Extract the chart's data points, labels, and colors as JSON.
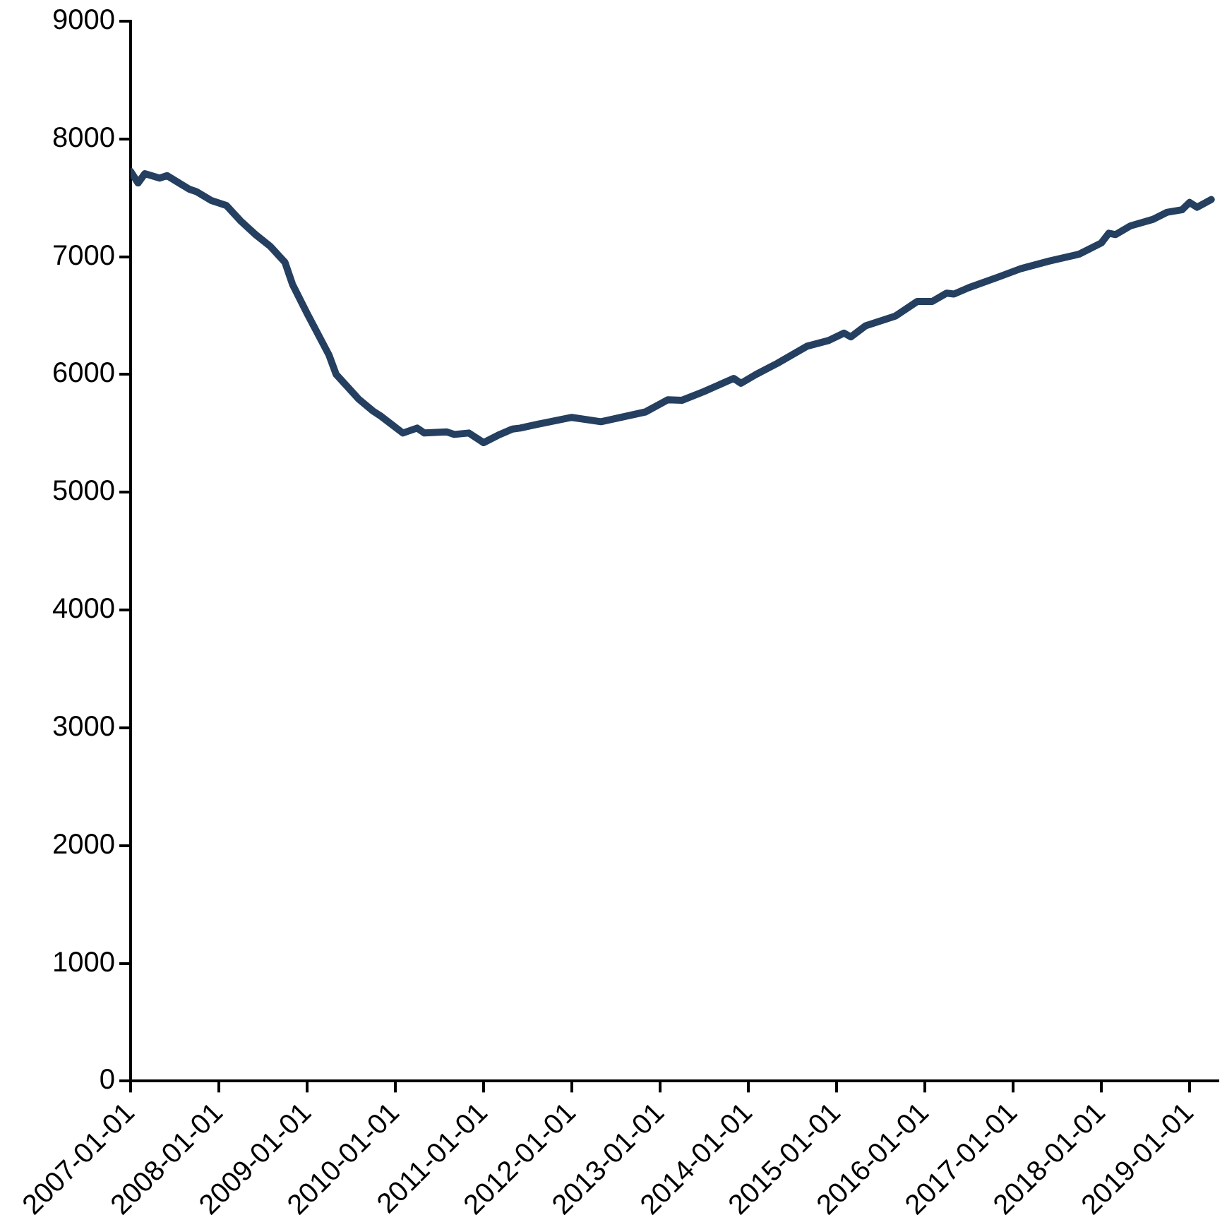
{
  "chart_data": {
    "type": "line",
    "x": [
      "2007-01",
      "2007-02",
      "2007-03",
      "2007-05",
      "2007-06",
      "2007-09",
      "2007-10",
      "2007-12",
      "2008-02",
      "2008-04",
      "2008-06",
      "2008-08",
      "2008-10",
      "2008-11",
      "2009-01",
      "2009-04",
      "2009-05",
      "2009-08",
      "2009-10",
      "2009-11",
      "2010-02",
      "2010-04",
      "2010-05",
      "2010-08",
      "2010-09",
      "2010-11",
      "2011-01",
      "2011-03",
      "2011-05",
      "2011-06",
      "2011-09",
      "2012-01",
      "2012-05",
      "2012-11",
      "2013-02",
      "2013-04",
      "2013-07",
      "2013-11",
      "2013-12",
      "2014-02",
      "2014-05",
      "2014-09",
      "2014-12",
      "2015-02",
      "2015-03",
      "2015-05",
      "2015-09",
      "2015-12",
      "2016-02",
      "2016-04",
      "2016-05",
      "2016-07",
      "2016-11",
      "2017-02",
      "2017-06",
      "2017-10",
      "2018-01",
      "2018-02",
      "2018-03",
      "2018-05",
      "2018-08",
      "2018-10",
      "2018-12",
      "2019-01",
      "2019-02",
      "2019-04"
    ],
    "series": [
      {
        "color": "#243f60",
        "values": [
          7725,
          7626,
          7705,
          7668,
          7688,
          7573,
          7552,
          7477,
          7436,
          7303,
          7188,
          7088,
          6952,
          6766,
          6517,
          6166,
          6000,
          5793,
          5689,
          5648,
          5503,
          5545,
          5503,
          5512,
          5491,
          5503,
          5421,
          5483,
          5537,
          5545,
          5586,
          5636,
          5599,
          5682,
          5785,
          5781,
          5855,
          5967,
          5925,
          6000,
          6095,
          6240,
          6290,
          6352,
          6319,
          6414,
          6496,
          6620,
          6620,
          6691,
          6683,
          6737,
          6828,
          6898,
          6964,
          7022,
          7117,
          7200,
          7188,
          7262,
          7316,
          7378,
          7399,
          7461,
          7420,
          7486
        ]
      }
    ],
    "xlim": [
      "2007-01-01",
      "2019-05-01"
    ],
    "xticks": [
      "2007-01-01",
      "2008-01-01",
      "2009-01-01",
      "2010-01-01",
      "2011-01-01",
      "2012-01-01",
      "2013-01-01",
      "2014-01-01",
      "2015-01-01",
      "2016-01-01",
      "2017-01-01",
      "2018-01-01",
      "2019-01-01"
    ],
    "ylim": [
      0,
      9000
    ],
    "yticks": [
      0,
      1000,
      2000,
      3000,
      4000,
      5000,
      6000,
      7000,
      8000,
      9000
    ],
    "grid": false,
    "legend": false,
    "marker": "none",
    "line_style": "solid"
  }
}
